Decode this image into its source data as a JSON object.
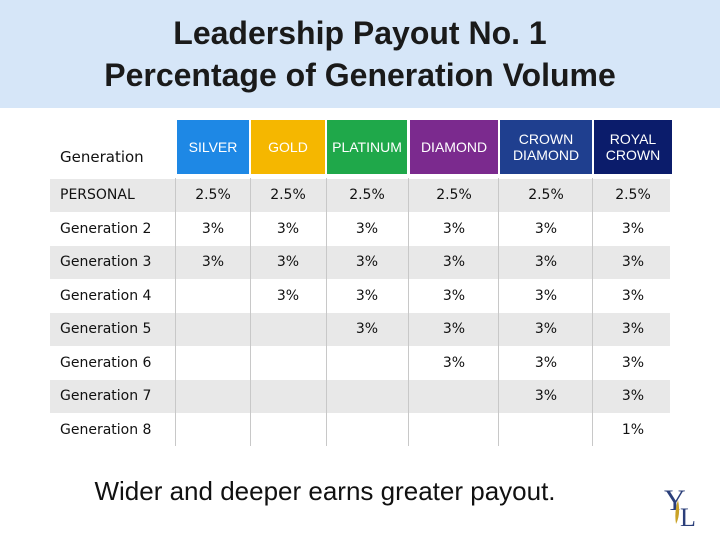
{
  "title": {
    "line1": "Leadership Payout No. 1",
    "line2": "Percentage of Generation Volume"
  },
  "generation_header": "Generation",
  "columns": [
    {
      "label": "SILVER",
      "color": "#1e88e5"
    },
    {
      "label": "GOLD",
      "color": "#f5b700"
    },
    {
      "label": "PLATINUM",
      "color": "#1fa84a"
    },
    {
      "label": "DIAMOND",
      "color": "#7b2a8e"
    },
    {
      "label": "CROWN DIAMOND",
      "color": "#1f3f8f"
    },
    {
      "label": "ROYAL CROWN",
      "color": "#0b1c6b"
    }
  ],
  "rows": [
    {
      "label": "PERSONAL",
      "values": [
        "2.5%",
        "2.5%",
        "2.5%",
        "2.5%",
        "2.5%",
        "2.5%"
      ]
    },
    {
      "label": "Generation 2",
      "values": [
        "3%",
        "3%",
        "3%",
        "3%",
        "3%",
        "3%"
      ]
    },
    {
      "label": "Generation 3",
      "values": [
        "3%",
        "3%",
        "3%",
        "3%",
        "3%",
        "3%"
      ]
    },
    {
      "label": "Generation 4",
      "values": [
        "",
        "3%",
        "3%",
        "3%",
        "3%",
        "3%"
      ]
    },
    {
      "label": "Generation 5",
      "values": [
        "",
        "",
        "3%",
        "3%",
        "3%",
        "3%"
      ]
    },
    {
      "label": "Generation 6",
      "values": [
        "",
        "",
        "",
        "3%",
        "3%",
        "3%"
      ]
    },
    {
      "label": "Generation 7",
      "values": [
        "",
        "",
        "",
        "",
        "3%",
        "3%"
      ]
    },
    {
      "label": "Generation 8",
      "values": [
        "",
        "",
        "",
        "",
        "",
        "1%"
      ]
    }
  ],
  "footer": "Wider and deeper earns greater payout.",
  "logo": {
    "icon": "young-living-logo-icon",
    "letter1": "Y",
    "letter2": "L"
  }
}
